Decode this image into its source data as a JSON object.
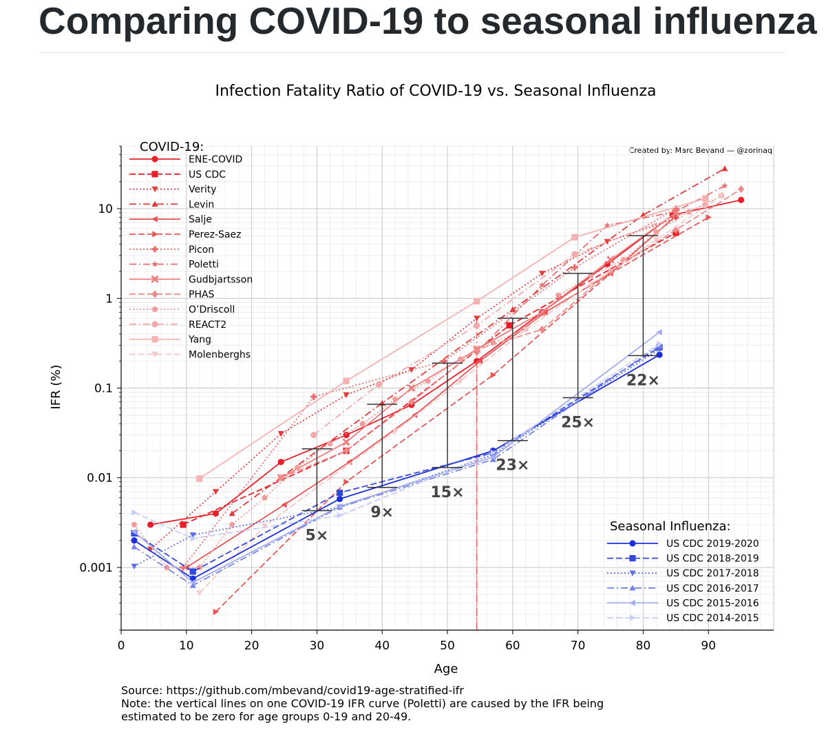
{
  "page": {
    "title": "Comparing COVID-19 to seasonal influenza"
  },
  "footer": {
    "source": "Source: https://github.com/mbevand/covid19-age-stratified-ifr",
    "note_line1": "Note: the vertical lines on one COVID-19 IFR curve (Poletti) are caused by the IFR being",
    "note_line2": "estimated to be zero for age groups 0-19 and 20-49."
  },
  "chart_data": {
    "type": "line",
    "title": "Infection Fatality Ratio of COVID-19 vs. Seasonal Influenza",
    "xlabel": "Age",
    "ylabel": "IFR (%)",
    "credit": "Created by: Marc Bevand — @zorinaq",
    "xlim": [
      0,
      100
    ],
    "ylim": [
      0.0002,
      50
    ],
    "yscale": "log",
    "xticks": [
      "0",
      "10",
      "20",
      "30",
      "40",
      "50",
      "60",
      "70",
      "80",
      "90"
    ],
    "yticks": [
      "0.001",
      "0.01",
      "0.1",
      "1",
      "10"
    ],
    "grid": true,
    "covid_legend_title": "COVID-19:",
    "flu_legend_title": "Seasonal Influenza:",
    "covid_series": [
      {
        "name": "ENE-COVID",
        "color": "#e8202a",
        "dash": "solid",
        "marker": "circle",
        "x": [
          4.5,
          14.5,
          24.5,
          34.5,
          44.5,
          54.5,
          64.5,
          74.5,
          84.5,
          95
        ],
        "y": [
          0.003,
          0.004,
          0.015,
          0.03,
          0.065,
          0.2,
          0.7,
          2.4,
          8.5,
          12.5
        ]
      },
      {
        "name": "US CDC",
        "color": "#e8202a",
        "dash": "dashed",
        "marker": "square",
        "x": [
          9.5,
          34.5,
          59.5,
          85
        ],
        "y": [
          0.003,
          0.02,
          0.5,
          5.4
        ]
      },
      {
        "name": "Verity",
        "color": "#e53a3a",
        "dash": "dotted",
        "marker": "triangle-down",
        "x": [
          4.5,
          14.5,
          24.5,
          34.5,
          44.5,
          54.5,
          64.5,
          74.5,
          85
        ],
        "y": [
          0.0016,
          0.007,
          0.031,
          0.084,
          0.16,
          0.6,
          1.9,
          4.3,
          7.8
        ]
      },
      {
        "name": "Levin",
        "color": "#e03a3a",
        "dash": "dashdot",
        "marker": "triangle-up",
        "x": [
          17,
          40,
          60,
          80,
          92.5
        ],
        "y": [
          0.004,
          0.068,
          0.75,
          8.5,
          28
        ]
      },
      {
        "name": "Salje",
        "color": "#e85555",
        "dash": "solid",
        "marker": "triangle-left",
        "x": [
          10,
          25,
          35,
          45,
          55,
          65,
          75,
          85
        ],
        "y": [
          0.001,
          0.005,
          0.015,
          0.05,
          0.2,
          0.7,
          1.9,
          8.3
        ]
      },
      {
        "name": "Perez-Saez",
        "color": "#e85555",
        "dash": "dashed",
        "marker": "triangle-right",
        "x": [
          14.5,
          34.5,
          57,
          75,
          90
        ],
        "y": [
          0.00032,
          0.009,
          0.14,
          1.9,
          8
        ]
      },
      {
        "name": "Picon",
        "color": "#ec6a6a",
        "dash": "dotted",
        "marker": "plus",
        "x": [
          9.5,
          29.5,
          49.5,
          69.5,
          85
        ],
        "y": [
          0.001,
          0.08,
          0.2,
          2.2,
          10
        ]
      },
      {
        "name": "Poletti",
        "color": "#e87070",
        "dash": "dashdot",
        "marker": "star",
        "x": [
          54.5,
          54.5,
          64.5,
          74.5,
          85,
          92.5
        ],
        "y": [
          0.0002,
          0.25,
          1.4,
          6.5,
          9.3,
          18
        ]
      },
      {
        "name": "Gudbjartsson",
        "color": "#ee7e7e",
        "dash": "solid",
        "marker": "x",
        "x": [
          24.5,
          34.5,
          44.5,
          54.5,
          64.5,
          75,
          85
        ],
        "y": [
          0.01,
          0.025,
          0.1,
          0.27,
          0.7,
          2.7,
          9
        ]
      },
      {
        "name": "PHAS",
        "color": "#ef8a8a",
        "dash": "dashed",
        "marker": "diamond",
        "x": [
          24.5,
          34.5,
          44.5,
          54.5,
          64.5,
          75,
          85,
          95
        ],
        "y": [
          0.01,
          0.02,
          0.07,
          0.27,
          0.45,
          2.0,
          5.8,
          16.5
        ]
      },
      {
        "name": "O’Driscoll",
        "color": "#f19b9b",
        "dash": "dotted",
        "marker": "pentagon",
        "x": [
          2,
          7,
          12,
          17,
          22,
          27,
          32,
          37,
          42,
          47,
          52,
          57,
          62,
          67,
          72,
          77,
          82,
          87,
          92
        ],
        "y": [
          0.003,
          0.001,
          0.001,
          0.003,
          0.006,
          0.013,
          0.024,
          0.04,
          0.075,
          0.12,
          0.21,
          0.32,
          0.46,
          1.08,
          1.8,
          2.7,
          5.5,
          9.2,
          14
        ]
      },
      {
        "name": "REACT2",
        "color": "#f4aaaa",
        "dash": "dashdot",
        "marker": "circle",
        "x": [
          29.5,
          39.5,
          54.5,
          69.5,
          89.5
        ],
        "y": [
          0.03,
          0.11,
          0.5,
          3.1,
          11
        ]
      },
      {
        "name": "Yang",
        "color": "#f5b2b2",
        "dash": "solid",
        "marker": "square",
        "x": [
          12,
          34.5,
          54.5,
          69.5,
          89.5
        ],
        "y": [
          0.0098,
          0.12,
          0.93,
          4.8,
          13
        ]
      },
      {
        "name": "Molenberghs",
        "color": "#f8c8c8",
        "dash": "dashed",
        "marker": "triangle-down",
        "x": [
          12,
          22,
          32,
          42,
          52,
          62,
          72,
          82,
          92
        ],
        "y": [
          0.00052,
          0.0029,
          0.01,
          0.033,
          0.12,
          0.45,
          1.45,
          4.5,
          14
        ]
      }
    ],
    "flu_series": [
      {
        "name": "US CDC 2019-2020",
        "color": "#1a2fd9",
        "dash": "solid",
        "marker": "circle",
        "x": [
          2,
          11,
          33.5,
          57,
          82.5
        ],
        "y": [
          0.002,
          0.00075,
          0.0058,
          0.02,
          0.235
        ]
      },
      {
        "name": "US CDC 2018-2019",
        "color": "#3548da",
        "dash": "dashed",
        "marker": "square",
        "x": [
          2,
          11,
          33.5,
          57,
          82.5
        ],
        "y": [
          0.0024,
          0.0009,
          0.0068,
          0.019,
          0.285
        ]
      },
      {
        "name": "US CDC 2017-2018",
        "color": "#5d6fe6",
        "dash": "dotted",
        "marker": "triangle-down",
        "x": [
          2,
          11,
          33.5,
          57,
          82.5
        ],
        "y": [
          0.00103,
          0.0023,
          0.0047,
          0.018,
          0.27
        ]
      },
      {
        "name": "US CDC 2016-2017",
        "color": "#7585e8",
        "dash": "dashdot",
        "marker": "triangle-up",
        "x": [
          2,
          11,
          33.5,
          57,
          82.5
        ],
        "y": [
          0.0017,
          0.00063,
          0.0047,
          0.016,
          0.3
        ]
      },
      {
        "name": "US CDC 2015-2016",
        "color": "#a2adf0",
        "dash": "solid",
        "marker": "triangle-left",
        "x": [
          2,
          11,
          33.5,
          57,
          82.5
        ],
        "y": [
          0.0025,
          0.00068,
          0.0048,
          0.017,
          0.42
        ]
      },
      {
        "name": "US CDC 2014-2015",
        "color": "#c6cdf6",
        "dash": "dashed",
        "marker": "triangle-right",
        "x": [
          2,
          11,
          33.5,
          57,
          82.5
        ],
        "y": [
          0.0041,
          0.0021,
          0.0038,
          0.019,
          0.31
        ]
      }
    ],
    "comparisons": [
      {
        "x": 30,
        "low": 0.0043,
        "high": 0.021,
        "label": "5×"
      },
      {
        "x": 40,
        "low": 0.0078,
        "high": 0.066,
        "label": "9×"
      },
      {
        "x": 50,
        "low": 0.013,
        "high": 0.19,
        "label": "15×"
      },
      {
        "x": 60,
        "low": 0.026,
        "high": 0.6,
        "label": "23×"
      },
      {
        "x": 70,
        "low": 0.078,
        "high": 1.9,
        "label": "25×"
      },
      {
        "x": 80,
        "low": 0.23,
        "high": 5.0,
        "label": "22×"
      }
    ],
    "poletti_vline_x": 54.5
  }
}
